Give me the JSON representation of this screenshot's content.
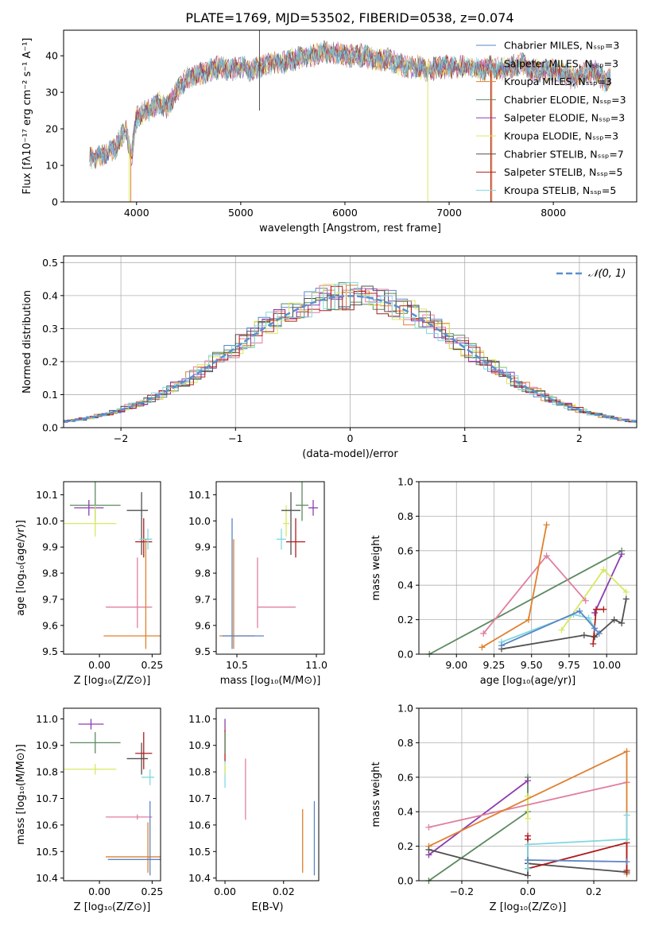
{
  "title": "PLATE=1769, MJD=53502, FIBERID=0538, z=0.074",
  "colors": {
    "chabrier_miles": "#5b85c4",
    "salpeter_miles": "#e07f9e",
    "kroupa_miles": "#e0802e",
    "chabrier_elodie": "#5c8a61",
    "salpeter_elodie": "#8e3cb0",
    "kroupa_elodie": "#d8e860",
    "chabrier_stelib": "#505050",
    "salpeter_stelib": "#b01c1c",
    "kroupa_stelib": "#80d8e0",
    "gauss": "#5b8fd0"
  },
  "chart_data": [
    {
      "id": "spectrum",
      "type": "line",
      "xlabel": "wavelength [Angstrom, rest frame]",
      "ylabel": "Flux [fλ10⁻¹⁷ erg cm⁻² s⁻¹ A⁻¹]",
      "xlim": [
        3300,
        8800
      ],
      "ylim": [
        0,
        47
      ],
      "xticks": [
        "4000",
        "5000",
        "6000",
        "7000",
        "8000"
      ],
      "yticks": [
        "0",
        "10",
        "20",
        "30",
        "40"
      ],
      "legend_position": "top-right",
      "series": [
        {
          "name": "Chabrier MILES, Nₛₛₚ=3",
          "color_key": "chabrier_miles"
        },
        {
          "name": "Salpeter MILES, Nₛₛₚ=3",
          "color_key": "salpeter_miles"
        },
        {
          "name": "Kroupa MILES, Nₛₛₚ=3",
          "color_key": "kroupa_miles"
        },
        {
          "name": "Chabrier ELODIE, Nₛₛₚ=3",
          "color_key": "chabrier_elodie"
        },
        {
          "name": "Salpeter ELODIE, Nₛₛₚ=3",
          "color_key": "salpeter_elodie"
        },
        {
          "name": "Kroupa ELODIE, Nₛₛₚ=3",
          "color_key": "kroupa_elodie"
        },
        {
          "name": "Chabrier STELIB, Nₛₛₚ=7",
          "color_key": "chabrier_stelib"
        },
        {
          "name": "Salpeter STELIB, Nₛₛₚ=5",
          "color_key": "salpeter_stelib"
        },
        {
          "name": "Kroupa STELIB, Nₛₛₚ=5",
          "color_key": "kroupa_stelib"
        }
      ],
      "continuum": [
        [
          3550,
          12
        ],
        [
          3700,
          13
        ],
        [
          3800,
          15
        ],
        [
          3900,
          20
        ],
        [
          3950,
          12
        ],
        [
          4000,
          23
        ],
        [
          4100,
          25
        ],
        [
          4200,
          27
        ],
        [
          4300,
          26
        ],
        [
          4400,
          31
        ],
        [
          4500,
          34
        ],
        [
          4600,
          35
        ],
        [
          4700,
          36
        ],
        [
          4800,
          37
        ],
        [
          4900,
          36
        ],
        [
          5000,
          37
        ],
        [
          5100,
          36
        ],
        [
          5200,
          37
        ],
        [
          5300,
          38
        ],
        [
          5400,
          38
        ],
        [
          5500,
          39
        ],
        [
          5600,
          40
        ],
        [
          5700,
          40
        ],
        [
          5800,
          41
        ],
        [
          5900,
          41
        ],
        [
          6000,
          40
        ],
        [
          6100,
          40
        ],
        [
          6200,
          40
        ],
        [
          6300,
          39
        ],
        [
          6400,
          39
        ],
        [
          6500,
          38
        ],
        [
          6600,
          37
        ],
        [
          6700,
          37
        ],
        [
          6800,
          36
        ],
        [
          6900,
          37
        ],
        [
          7000,
          37
        ],
        [
          7100,
          37
        ],
        [
          7200,
          37
        ],
        [
          7300,
          36
        ],
        [
          7400,
          37
        ],
        [
          7500,
          36
        ],
        [
          7600,
          37
        ],
        [
          7700,
          38
        ],
        [
          7800,
          36
        ],
        [
          7900,
          36
        ],
        [
          8000,
          36
        ],
        [
          8100,
          35
        ],
        [
          8200,
          34
        ],
        [
          8300,
          35
        ],
        [
          8400,
          36
        ],
        [
          8500,
          33
        ],
        [
          8550,
          34
        ]
      ]
    },
    {
      "id": "residuals",
      "type": "step",
      "xlabel": "(data-model)/error",
      "ylabel": "Normed distribution",
      "xlim": [
        -2.5,
        2.5
      ],
      "ylim": [
        0,
        0.52
      ],
      "xticks": [
        "−2",
        "−1",
        "0",
        "1",
        "2"
      ],
      "yticks": [
        "0.0",
        "0.1",
        "0.2",
        "0.3",
        "0.4",
        "0.5"
      ],
      "grid": true,
      "legend_position": "top-right",
      "gauss_label": "𝒩(0, 1)"
    },
    {
      "id": "age_vs_Z",
      "type": "errorbar",
      "xlabel": "Z [log₁₀(Z/Z⊙)]",
      "ylabel": "age  [log₁₀(age/yr)]",
      "xlim": [
        -0.17,
        0.29
      ],
      "ylim": [
        9.49,
        10.15
      ],
      "xticks": [
        "0.00",
        "0.25"
      ],
      "yticks": [
        "9.5",
        "9.6",
        "9.7",
        "9.8",
        "9.9",
        "10.0",
        "10.1"
      ],
      "points": [
        {
          "k": "chabrier_elodie",
          "x": -0.02,
          "y": 10.06,
          "xe": [
            0.12,
            0.12
          ],
          "ye": [
            0.06,
            0.09
          ]
        },
        {
          "k": "salpeter_elodie",
          "x": -0.05,
          "y": 10.05,
          "xe": [
            0.07,
            0.07
          ],
          "ye": [
            0.03,
            0.03
          ]
        },
        {
          "k": "kroupa_elodie",
          "x": -0.02,
          "y": 9.99,
          "xe": [
            0.16,
            0.1
          ],
          "ye": [
            0.05,
            0.07
          ]
        },
        {
          "k": "chabrier_stelib",
          "x": 0.2,
          "y": 10.04,
          "xe": [
            0.07,
            0.03
          ],
          "ye": [
            0.17,
            0.07
          ]
        },
        {
          "k": "salpeter_stelib",
          "x": 0.21,
          "y": 9.92,
          "xe": [
            0.04,
            0.04
          ],
          "ye": [
            0.06,
            0.09
          ]
        },
        {
          "k": "kroupa_stelib",
          "x": 0.23,
          "y": 9.93,
          "xe": [
            0.04,
            0.02
          ],
          "ye": [
            0.04,
            0.04
          ]
        },
        {
          "k": "salpeter_miles",
          "x": 0.18,
          "y": 9.67,
          "xe": [
            0.15,
            0.07
          ],
          "ye": [
            0.08,
            0.19
          ]
        },
        {
          "k": "kroupa_miles",
          "x": 0.22,
          "y": 9.56,
          "xe": [
            0.2,
            0.07
          ],
          "ye": [
            0.05,
            0.37
          ]
        }
      ]
    },
    {
      "id": "age_vs_mass",
      "type": "errorbar",
      "xlabel": "mass [log₁₀(M/M⊙)]",
      "ylabel": "",
      "xlim": [
        10.37,
        11.05
      ],
      "ylim": [
        9.49,
        10.15
      ],
      "xticks": [
        "10.5",
        "11.0"
      ],
      "yticks": [
        "9.5",
        "9.6",
        "9.7",
        "9.8",
        "9.9",
        "10.0",
        "10.1"
      ],
      "points": [
        {
          "k": "chabrier_elodie",
          "x": 10.91,
          "y": 10.06,
          "xe": [
            0.04,
            0.04
          ],
          "ye": [
            0.06,
            0.09
          ]
        },
        {
          "k": "salpeter_elodie",
          "x": 10.98,
          "y": 10.05,
          "xe": [
            0.03,
            0.03
          ],
          "ye": [
            0.03,
            0.03
          ]
        },
        {
          "k": "kroupa_elodie",
          "x": 10.81,
          "y": 9.99,
          "xe": [
            0.02,
            0.02
          ],
          "ye": [
            0.05,
            0.07
          ]
        },
        {
          "k": "chabrier_stelib",
          "x": 10.84,
          "y": 10.04,
          "xe": [
            0.06,
            0.06
          ],
          "ye": [
            0.17,
            0.07
          ]
        },
        {
          "k": "salpeter_stelib",
          "x": 10.87,
          "y": 9.92,
          "xe": [
            0.06,
            0.06
          ],
          "ye": [
            0.06,
            0.09
          ]
        },
        {
          "k": "kroupa_stelib",
          "x": 10.78,
          "y": 9.93,
          "xe": [
            0.03,
            0.03
          ],
          "ye": [
            0.04,
            0.04
          ]
        },
        {
          "k": "salpeter_miles",
          "x": 10.63,
          "y": 9.67,
          "xe": [
            0.0,
            0.24
          ],
          "ye": [
            0.08,
            0.19
          ]
        },
        {
          "k": "kroupa_miles",
          "x": 10.48,
          "y": 9.56,
          "xe": [
            0.09,
            0.13
          ],
          "ye": [
            0.05,
            0.37
          ]
        },
        {
          "k": "chabrier_miles",
          "x": 10.47,
          "y": 9.56,
          "xe": [
            0.06,
            0.2
          ],
          "ye": [
            0.05,
            0.45
          ]
        }
      ]
    },
    {
      "id": "weight_vs_age",
      "type": "line",
      "xlabel": "age  [log₁₀(age/yr)]",
      "ylabel": "mass weight",
      "xlim": [
        8.75,
        10.2
      ],
      "ylim": [
        0,
        1.0
      ],
      "xticks": [
        "9.00",
        "9.25",
        "9.50",
        "9.75",
        "10.00"
      ],
      "yticks": [
        "0.0",
        "0.2",
        "0.4",
        "0.6",
        "0.8",
        "1.0"
      ],
      "grid": true,
      "series": [
        {
          "k": "chabrier_elodie",
          "x": [
            8.82,
            10.1
          ],
          "y": [
            0.0,
            0.6
          ]
        },
        {
          "k": "salpeter_elodie",
          "x": [
            9.92,
            10.1
          ],
          "y": [
            0.24,
            0.58
          ]
        },
        {
          "k": "kroupa_elodie",
          "x": [
            9.7,
            9.98,
            10.13
          ],
          "y": [
            0.14,
            0.49,
            0.36
          ]
        },
        {
          "k": "salpeter_miles",
          "x": [
            9.18,
            9.6,
            9.86
          ],
          "y": [
            0.12,
            0.57,
            0.31
          ]
        },
        {
          "k": "kroupa_miles",
          "x": [
            9.17,
            9.48,
            9.6
          ],
          "y": [
            0.04,
            0.2,
            0.75
          ]
        },
        {
          "k": "chabrier_stelib",
          "x": [
            9.3,
            9.85,
            9.92,
            10.05,
            10.1,
            10.13
          ],
          "y": [
            0.03,
            0.11,
            0.1,
            0.2,
            0.18,
            0.32
          ]
        },
        {
          "k": "salpeter_stelib",
          "x": [
            9.91,
            9.93,
            9.98
          ],
          "y": [
            0.06,
            0.26,
            0.26
          ]
        },
        {
          "k": "kroupa_stelib",
          "x": [
            9.3,
            9.78,
            9.88,
            9.92
          ],
          "y": [
            0.07,
            0.23,
            0.21,
            0.15
          ]
        },
        {
          "k": "chabrier_miles",
          "x": [
            9.3,
            9.82,
            9.92,
            9.95
          ],
          "y": [
            0.05,
            0.25,
            0.15,
            0.12
          ]
        }
      ]
    },
    {
      "id": "mass_vs_Z",
      "type": "errorbar",
      "xlabel": "Z [log₁₀(Z/Z⊙)]",
      "ylabel": "mass [log₁₀(M/M⊙)]",
      "xlim": [
        -0.17,
        0.29
      ],
      "ylim": [
        10.39,
        11.04
      ],
      "xticks": [
        "0.00",
        "0.25"
      ],
      "yticks": [
        "10.4",
        "10.5",
        "10.6",
        "10.7",
        "10.8",
        "10.9",
        "11.0"
      ],
      "points": [
        {
          "k": "salpeter_elodie",
          "x": -0.04,
          "y": 10.98,
          "xe": [
            0.06,
            0.06
          ],
          "ye": [
            0.02,
            0.02
          ]
        },
        {
          "k": "chabrier_elodie",
          "x": -0.02,
          "y": 10.91,
          "xe": [
            0.12,
            0.12
          ],
          "ye": [
            0.04,
            0.04
          ]
        },
        {
          "k": "kroupa_elodie",
          "x": -0.02,
          "y": 10.81,
          "xe": [
            0.16,
            0.1
          ],
          "ye": [
            0.02,
            0.02
          ]
        },
        {
          "k": "chabrier_stelib",
          "x": 0.2,
          "y": 10.85,
          "xe": [
            0.07,
            0.03
          ],
          "ye": [
            0.06,
            0.06
          ]
        },
        {
          "k": "salpeter_stelib",
          "x": 0.21,
          "y": 10.87,
          "xe": [
            0.04,
            0.04
          ],
          "ye": [
            0.06,
            0.08
          ]
        },
        {
          "k": "kroupa_stelib",
          "x": 0.24,
          "y": 10.78,
          "xe": [
            0.04,
            0.02
          ],
          "ye": [
            0.03,
            0.03
          ]
        },
        {
          "k": "salpeter_miles",
          "x": 0.18,
          "y": 10.63,
          "xe": [
            0.15,
            0.07
          ],
          "ye": [
            0.01,
            0.01
          ]
        },
        {
          "k": "kroupa_miles",
          "x": 0.23,
          "y": 10.48,
          "xe": [
            0.2,
            0.07
          ],
          "ye": [
            0.06,
            0.13
          ]
        },
        {
          "k": "chabrier_miles",
          "x": 0.24,
          "y": 10.47,
          "xe": [
            0.2,
            0.07
          ],
          "ye": [
            0.06,
            0.22
          ]
        }
      ]
    },
    {
      "id": "mass_vs_ebv",
      "type": "errorbar",
      "xlabel": "E(B-V)",
      "ylabel": "",
      "xlim": [
        -0.003,
        0.032
      ],
      "ylim": [
        10.39,
        11.04
      ],
      "xticks": [
        "0.00",
        "0.02"
      ],
      "yticks": [
        "10.4",
        "10.5",
        "10.6",
        "10.7",
        "10.8",
        "10.9",
        "11.0"
      ],
      "points": [
        {
          "k": "salpeter_elodie",
          "x": 0.0,
          "y": 10.98,
          "xe": [
            0,
            0
          ],
          "ye": [
            0.02,
            0.02
          ]
        },
        {
          "k": "salpeter_stelib",
          "x": 0.0,
          "y": 10.9,
          "xe": [
            0,
            0
          ],
          "ye": [
            0.06,
            0.06
          ]
        },
        {
          "k": "chabrier_elodie",
          "x": 0.0,
          "y": 10.91,
          "xe": [
            0,
            0
          ],
          "ye": [
            0.04,
            0.04
          ]
        },
        {
          "k": "kroupa_stelib",
          "x": 0.0,
          "y": 10.78,
          "xe": [
            0,
            0
          ],
          "ye": [
            0.04,
            0.06
          ]
        },
        {
          "k": "kroupa_elodie",
          "x": 0.0,
          "y": 10.81,
          "xe": [
            0,
            0
          ],
          "ye": [
            0.02,
            0.02
          ]
        },
        {
          "k": "salpeter_miles",
          "x": 0.007,
          "y": 10.73,
          "xe": [
            0,
            0
          ],
          "ye": [
            0.11,
            0.12
          ]
        },
        {
          "k": "kroupa_miles",
          "x": 0.0265,
          "y": 10.54,
          "xe": [
            0,
            0
          ],
          "ye": [
            0.12,
            0.12
          ]
        },
        {
          "k": "chabrier_miles",
          "x": 0.0305,
          "y": 10.56,
          "xe": [
            0,
            0
          ],
          "ye": [
            0.15,
            0.13
          ]
        }
      ]
    },
    {
      "id": "weight_vs_Z",
      "type": "line",
      "xlabel": "Z [log₁₀(Z/Z⊙)]",
      "ylabel": "mass weight",
      "xlim": [
        -0.33,
        0.33
      ],
      "ylim": [
        0,
        1.0
      ],
      "xticks": [
        "−0.2",
        "0.0",
        "0.2"
      ],
      "yticks": [
        "0.0",
        "0.2",
        "0.4",
        "0.6",
        "0.8",
        "1.0"
      ],
      "grid": true,
      "series": [
        {
          "k": "chabrier_elodie",
          "x": [
            -0.3,
            0.0,
            0.0
          ],
          "y": [
            0.0,
            0.4,
            0.6
          ]
        },
        {
          "k": "salpeter_elodie",
          "x": [
            -0.3,
            0.0
          ],
          "y": [
            0.15,
            0.58
          ]
        },
        {
          "k": "kroupa_elodie",
          "x": [
            0.0,
            0.0
          ],
          "y": [
            0.36,
            0.49
          ]
        },
        {
          "k": "salpeter_miles",
          "x": [
            -0.3,
            0.3
          ],
          "y": [
            0.31,
            0.57
          ]
        },
        {
          "k": "kroupa_miles",
          "x": [
            -0.3,
            0.3,
            0.3
          ],
          "y": [
            0.2,
            0.75,
            0.04
          ]
        },
        {
          "k": "chabrier_stelib",
          "x": [
            -0.3,
            0.0,
            0.0,
            0.3
          ],
          "y": [
            0.18,
            0.03,
            0.1,
            0.05
          ]
        },
        {
          "k": "salpeter_stelib",
          "x": [
            0.0,
            0.0,
            0.0,
            0.3,
            0.3
          ],
          "y": [
            0.26,
            0.24,
            0.07,
            0.22,
            0.06
          ]
        },
        {
          "k": "kroupa_stelib",
          "x": [
            0.0,
            0.0,
            0.3,
            0.3
          ],
          "y": [
            0.07,
            0.21,
            0.24,
            0.38
          ]
        },
        {
          "k": "chabrier_miles",
          "x": [
            0.0,
            0.3
          ],
          "y": [
            0.12,
            0.11
          ]
        }
      ]
    }
  ]
}
